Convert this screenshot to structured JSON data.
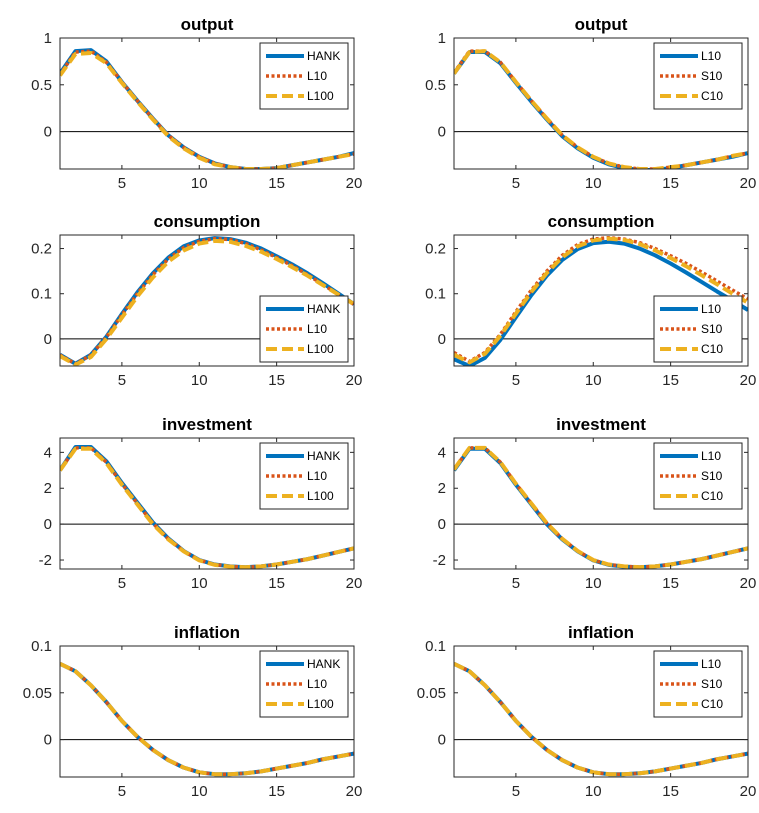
{
  "colors": {
    "blue": "#0072BD",
    "orange": "#D95319",
    "yellow": "#EDB120"
  },
  "chart_data": [
    {
      "type": "line",
      "title": "output",
      "xlim": [
        1,
        20
      ],
      "ylim": [
        -0.4,
        1
      ],
      "xticks": [
        5,
        10,
        15,
        20
      ],
      "yticks": [
        0,
        0.5,
        1
      ],
      "zero_line": true,
      "legend_position": "top-right",
      "x": [
        1,
        2,
        3,
        4,
        5,
        6,
        7,
        8,
        9,
        10,
        11,
        12,
        13,
        14,
        15,
        16,
        17,
        18,
        19,
        20
      ],
      "series": [
        {
          "name": "HANK",
          "style": "solid",
          "color": "#0072BD",
          "values": [
            0.62,
            0.86,
            0.87,
            0.75,
            0.53,
            0.33,
            0.14,
            -0.04,
            -0.17,
            -0.27,
            -0.34,
            -0.38,
            -0.4,
            -0.4,
            -0.39,
            -0.36,
            -0.33,
            -0.3,
            -0.27,
            -0.23
          ]
        },
        {
          "name": "L10",
          "style": "dotted",
          "color": "#D95319",
          "values": [
            0.61,
            0.85,
            0.86,
            0.74,
            0.53,
            0.33,
            0.14,
            -0.04,
            -0.17,
            -0.27,
            -0.34,
            -0.38,
            -0.4,
            -0.4,
            -0.39,
            -0.36,
            -0.33,
            -0.3,
            -0.27,
            -0.24
          ]
        },
        {
          "name": "L100",
          "style": "dashed",
          "color": "#EDB120",
          "values": [
            0.6,
            0.83,
            0.84,
            0.73,
            0.52,
            0.32,
            0.13,
            -0.05,
            -0.18,
            -0.28,
            -0.35,
            -0.38,
            -0.4,
            -0.4,
            -0.39,
            -0.36,
            -0.33,
            -0.3,
            -0.27,
            -0.24
          ]
        }
      ]
    },
    {
      "type": "line",
      "title": "output",
      "xlim": [
        1,
        20
      ],
      "ylim": [
        -0.4,
        1
      ],
      "xticks": [
        5,
        10,
        15,
        20
      ],
      "yticks": [
        0,
        0.5,
        1
      ],
      "zero_line": true,
      "legend_position": "top-right",
      "x": [
        1,
        2,
        3,
        4,
        5,
        6,
        7,
        8,
        9,
        10,
        11,
        12,
        13,
        14,
        15,
        16,
        17,
        18,
        19,
        20
      ],
      "series": [
        {
          "name": "L10",
          "style": "solid",
          "color": "#0072BD",
          "values": [
            0.62,
            0.85,
            0.85,
            0.73,
            0.52,
            0.32,
            0.13,
            -0.05,
            -0.18,
            -0.28,
            -0.35,
            -0.39,
            -0.41,
            -0.41,
            -0.39,
            -0.36,
            -0.33,
            -0.3,
            -0.27,
            -0.23
          ]
        },
        {
          "name": "S10",
          "style": "dotted",
          "color": "#D95319",
          "values": [
            0.63,
            0.86,
            0.86,
            0.74,
            0.53,
            0.33,
            0.14,
            -0.04,
            -0.17,
            -0.27,
            -0.34,
            -0.38,
            -0.4,
            -0.4,
            -0.38,
            -0.36,
            -0.33,
            -0.3,
            -0.26,
            -0.23
          ]
        },
        {
          "name": "C10",
          "style": "dashed",
          "color": "#EDB120",
          "values": [
            0.62,
            0.85,
            0.86,
            0.74,
            0.53,
            0.33,
            0.14,
            -0.04,
            -0.17,
            -0.27,
            -0.34,
            -0.38,
            -0.4,
            -0.4,
            -0.38,
            -0.36,
            -0.33,
            -0.3,
            -0.26,
            -0.23
          ]
        }
      ]
    },
    {
      "type": "line",
      "title": "consumption",
      "xlim": [
        1,
        20
      ],
      "ylim": [
        -0.06,
        0.23
      ],
      "xticks": [
        5,
        10,
        15,
        20
      ],
      "yticks": [
        0,
        0.1,
        0.2
      ],
      "zero_line": true,
      "legend_position": "bottom-right",
      "x": [
        1,
        2,
        3,
        4,
        5,
        6,
        7,
        8,
        9,
        10,
        11,
        12,
        13,
        14,
        15,
        16,
        17,
        18,
        19,
        20
      ],
      "series": [
        {
          "name": "HANK",
          "style": "solid",
          "color": "#0072BD",
          "values": [
            -0.035,
            -0.055,
            -0.035,
            0.005,
            0.055,
            0.103,
            0.145,
            0.18,
            0.205,
            0.218,
            0.223,
            0.221,
            0.213,
            0.2,
            0.183,
            0.165,
            0.145,
            0.123,
            0.1,
            0.077
          ]
        },
        {
          "name": "L10",
          "style": "dotted",
          "color": "#D95319",
          "values": [
            -0.036,
            -0.055,
            -0.036,
            0.004,
            0.053,
            0.1,
            0.142,
            0.177,
            0.202,
            0.216,
            0.222,
            0.22,
            0.211,
            0.197,
            0.18,
            0.162,
            0.142,
            0.12,
            0.098,
            0.076
          ]
        },
        {
          "name": "L100",
          "style": "dashed",
          "color": "#EDB120",
          "values": [
            -0.038,
            -0.057,
            -0.04,
            0.0,
            0.047,
            0.094,
            0.136,
            0.171,
            0.196,
            0.211,
            0.217,
            0.215,
            0.206,
            0.193,
            0.177,
            0.159,
            0.14,
            0.119,
            0.098,
            0.077
          ]
        }
      ]
    },
    {
      "type": "line",
      "title": "consumption",
      "xlim": [
        1,
        20
      ],
      "ylim": [
        -0.06,
        0.23
      ],
      "xticks": [
        5,
        10,
        15,
        20
      ],
      "yticks": [
        0,
        0.1,
        0.2
      ],
      "zero_line": true,
      "legend_position": "bottom-right",
      "x": [
        1,
        2,
        3,
        4,
        5,
        6,
        7,
        8,
        9,
        10,
        11,
        12,
        13,
        14,
        15,
        16,
        17,
        18,
        19,
        20
      ],
      "series": [
        {
          "name": "L10",
          "style": "solid",
          "color": "#0072BD",
          "values": [
            -0.045,
            -0.06,
            -0.042,
            -0.002,
            0.048,
            0.097,
            0.14,
            0.175,
            0.199,
            0.212,
            0.215,
            0.211,
            0.2,
            0.185,
            0.167,
            0.147,
            0.126,
            0.105,
            0.085,
            0.064
          ]
        },
        {
          "name": "S10",
          "style": "dotted",
          "color": "#D95319",
          "values": [
            -0.03,
            -0.05,
            -0.03,
            0.01,
            0.06,
            0.108,
            0.15,
            0.185,
            0.209,
            0.221,
            0.224,
            0.221,
            0.213,
            0.2,
            0.184,
            0.167,
            0.148,
            0.128,
            0.108,
            0.088
          ]
        },
        {
          "name": "C10",
          "style": "dashed",
          "color": "#EDB120",
          "values": [
            -0.035,
            -0.052,
            -0.033,
            0.007,
            0.056,
            0.104,
            0.146,
            0.181,
            0.205,
            0.218,
            0.222,
            0.219,
            0.21,
            0.196,
            0.179,
            0.161,
            0.141,
            0.121,
            0.1,
            0.08
          ]
        }
      ]
    },
    {
      "type": "line",
      "title": "investment",
      "xlim": [
        1,
        20
      ],
      "ylim": [
        -2.5,
        4.8
      ],
      "xticks": [
        5,
        10,
        15,
        20
      ],
      "yticks": [
        -2,
        0,
        2,
        4
      ],
      "zero_line": true,
      "legend_position": "top-right",
      "x": [
        1,
        2,
        3,
        4,
        5,
        6,
        7,
        8,
        9,
        10,
        11,
        12,
        13,
        14,
        15,
        16,
        17,
        18,
        19,
        20
      ],
      "series": [
        {
          "name": "HANK",
          "style": "solid",
          "color": "#0072BD",
          "values": [
            3.0,
            4.3,
            4.3,
            3.5,
            2.3,
            1.2,
            0.1,
            -0.8,
            -1.5,
            -2.0,
            -2.25,
            -2.35,
            -2.4,
            -2.35,
            -2.25,
            -2.1,
            -1.95,
            -1.75,
            -1.55,
            -1.35
          ]
        },
        {
          "name": "L10",
          "style": "dotted",
          "color": "#D95319",
          "values": [
            3.0,
            4.25,
            4.25,
            3.45,
            2.25,
            1.15,
            0.05,
            -0.82,
            -1.5,
            -2.0,
            -2.25,
            -2.35,
            -2.4,
            -2.35,
            -2.25,
            -2.1,
            -1.95,
            -1.75,
            -1.55,
            -1.35
          ]
        },
        {
          "name": "L100",
          "style": "dashed",
          "color": "#EDB120",
          "values": [
            3.0,
            4.2,
            4.2,
            3.4,
            2.2,
            1.1,
            0.0,
            -0.85,
            -1.52,
            -2.02,
            -2.27,
            -2.37,
            -2.4,
            -2.35,
            -2.25,
            -2.1,
            -1.95,
            -1.75,
            -1.55,
            -1.35
          ]
        }
      ]
    },
    {
      "type": "line",
      "title": "investment",
      "xlim": [
        1,
        20
      ],
      "ylim": [
        -2.5,
        4.8
      ],
      "xticks": [
        5,
        10,
        15,
        20
      ],
      "yticks": [
        -2,
        0,
        2,
        4
      ],
      "zero_line": true,
      "legend_position": "top-right",
      "x": [
        1,
        2,
        3,
        4,
        5,
        6,
        7,
        8,
        9,
        10,
        11,
        12,
        13,
        14,
        15,
        16,
        17,
        18,
        19,
        20
      ],
      "series": [
        {
          "name": "L10",
          "style": "solid",
          "color": "#0072BD",
          "values": [
            3.0,
            4.2,
            4.2,
            3.4,
            2.2,
            1.1,
            0.0,
            -0.85,
            -1.52,
            -2.02,
            -2.27,
            -2.37,
            -2.4,
            -2.35,
            -2.25,
            -2.1,
            -1.95,
            -1.75,
            -1.55,
            -1.35
          ]
        },
        {
          "name": "S10",
          "style": "dotted",
          "color": "#D95319",
          "values": [
            3.05,
            4.25,
            4.25,
            3.45,
            2.25,
            1.15,
            0.05,
            -0.82,
            -1.5,
            -2.0,
            -2.25,
            -2.35,
            -2.4,
            -2.35,
            -2.25,
            -2.1,
            -1.95,
            -1.75,
            -1.55,
            -1.35
          ]
        },
        {
          "name": "C10",
          "style": "dashed",
          "color": "#EDB120",
          "values": [
            3.05,
            4.25,
            4.25,
            3.45,
            2.25,
            1.15,
            0.05,
            -0.82,
            -1.5,
            -2.0,
            -2.25,
            -2.35,
            -2.4,
            -2.35,
            -2.25,
            -2.1,
            -1.95,
            -1.75,
            -1.55,
            -1.35
          ]
        }
      ]
    },
    {
      "type": "line",
      "title": "inflation",
      "xlim": [
        1,
        20
      ],
      "ylim": [
        -0.04,
        0.1
      ],
      "xticks": [
        5,
        10,
        15,
        20
      ],
      "yticks": [
        0,
        0.05,
        0.1
      ],
      "zero_line": true,
      "legend_position": "top-right",
      "x": [
        1,
        2,
        3,
        4,
        5,
        6,
        7,
        8,
        9,
        10,
        11,
        12,
        13,
        14,
        15,
        16,
        17,
        18,
        19,
        20
      ],
      "series": [
        {
          "name": "HANK",
          "style": "solid",
          "color": "#0072BD",
          "values": [
            0.081,
            0.073,
            0.058,
            0.04,
            0.02,
            0.003,
            -0.011,
            -0.022,
            -0.03,
            -0.035,
            -0.037,
            -0.037,
            -0.036,
            -0.034,
            -0.031,
            -0.028,
            -0.025,
            -0.021,
            -0.018,
            -0.015
          ]
        },
        {
          "name": "L10",
          "style": "dotted",
          "color": "#D95319",
          "values": [
            0.081,
            0.073,
            0.058,
            0.04,
            0.02,
            0.003,
            -0.011,
            -0.022,
            -0.03,
            -0.035,
            -0.037,
            -0.037,
            -0.036,
            -0.034,
            -0.031,
            -0.028,
            -0.025,
            -0.021,
            -0.018,
            -0.015
          ]
        },
        {
          "name": "L100",
          "style": "dashed",
          "color": "#EDB120",
          "values": [
            0.081,
            0.073,
            0.058,
            0.04,
            0.02,
            0.003,
            -0.011,
            -0.022,
            -0.03,
            -0.035,
            -0.037,
            -0.037,
            -0.036,
            -0.034,
            -0.031,
            -0.028,
            -0.025,
            -0.021,
            -0.018,
            -0.015
          ]
        }
      ]
    },
    {
      "type": "line",
      "title": "inflation",
      "xlim": [
        1,
        20
      ],
      "ylim": [
        -0.04,
        0.1
      ],
      "xticks": [
        5,
        10,
        15,
        20
      ],
      "yticks": [
        0,
        0.05,
        0.1
      ],
      "zero_line": true,
      "legend_position": "top-right",
      "x": [
        1,
        2,
        3,
        4,
        5,
        6,
        7,
        8,
        9,
        10,
        11,
        12,
        13,
        14,
        15,
        16,
        17,
        18,
        19,
        20
      ],
      "series": [
        {
          "name": "L10",
          "style": "solid",
          "color": "#0072BD",
          "values": [
            0.081,
            0.073,
            0.058,
            0.04,
            0.02,
            0.003,
            -0.011,
            -0.022,
            -0.03,
            -0.035,
            -0.037,
            -0.037,
            -0.036,
            -0.034,
            -0.031,
            -0.028,
            -0.025,
            -0.021,
            -0.018,
            -0.015
          ]
        },
        {
          "name": "S10",
          "style": "dotted",
          "color": "#D95319",
          "values": [
            0.081,
            0.073,
            0.058,
            0.04,
            0.02,
            0.003,
            -0.011,
            -0.022,
            -0.03,
            -0.035,
            -0.037,
            -0.037,
            -0.036,
            -0.034,
            -0.031,
            -0.028,
            -0.025,
            -0.021,
            -0.018,
            -0.015
          ]
        },
        {
          "name": "C10",
          "style": "dashed",
          "color": "#EDB120",
          "values": [
            0.081,
            0.073,
            0.058,
            0.04,
            0.02,
            0.003,
            -0.011,
            -0.022,
            -0.03,
            -0.035,
            -0.037,
            -0.037,
            -0.036,
            -0.034,
            -0.031,
            -0.028,
            -0.025,
            -0.021,
            -0.018,
            -0.015
          ]
        }
      ]
    }
  ]
}
